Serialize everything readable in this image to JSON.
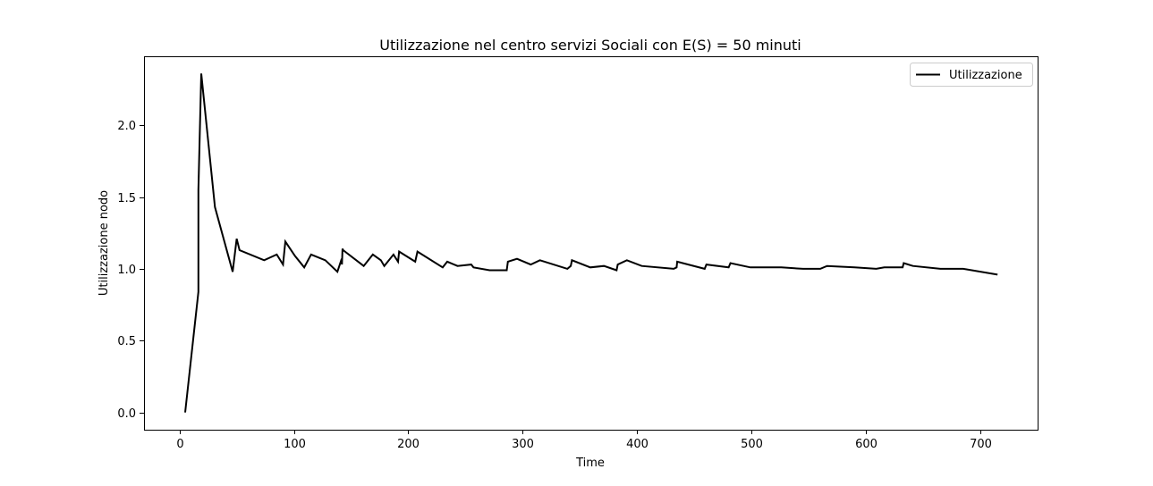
{
  "chart_data": {
    "type": "line",
    "title": "Utilizzazione nel centro servizi Sociali con E(S) = 50 minuti",
    "xlabel": "Time",
    "ylabel": "Utilizzazione nodo",
    "xlim": [
      -31,
      750
    ],
    "ylim": [
      -0.12,
      2.48
    ],
    "xticks": [
      0,
      100,
      200,
      300,
      400,
      500,
      600,
      700
    ],
    "yticks": [
      0.0,
      0.5,
      1.0,
      1.5,
      2.0
    ],
    "xtick_labels": [
      "0",
      "100",
      "200",
      "300",
      "400",
      "500",
      "600",
      "700"
    ],
    "ytick_labels": [
      "0.0",
      "0.5",
      "1.0",
      "1.5",
      "2.0"
    ],
    "grid": false,
    "legend_position": "top-right",
    "series": [
      {
        "name": "Utilizzazione",
        "color": "#000000",
        "x": [
          5,
          16.5,
          16.5,
          19,
          31,
          46.5,
          50,
          52.5,
          74,
          85,
          90.5,
          92.5,
          101,
          109,
          115,
          127.5,
          138,
          141.8,
          142,
          142.5,
          143,
          161,
          169,
          176,
          179,
          187,
          191,
          192,
          206,
          208,
          230,
          234,
          243,
          255,
          257,
          271,
          282,
          286,
          287,
          295,
          307,
          315,
          339,
          342,
          343,
          359,
          371,
          382,
          383,
          391,
          404,
          432,
          434.5,
          435,
          459,
          460.5,
          480,
          481.5,
          499,
          526,
          545,
          560,
          566,
          590,
          609,
          616,
          632,
          633,
          641,
          665,
          685,
          715
        ],
        "y": [
          0.0,
          0.84,
          1.55,
          2.36,
          1.43,
          0.98,
          1.21,
          1.13,
          1.06,
          1.1,
          1.03,
          1.19,
          1.09,
          1.01,
          1.1,
          1.06,
          0.98,
          1.07,
          1.03,
          1.14,
          1.13,
          1.02,
          1.1,
          1.06,
          1.02,
          1.1,
          1.05,
          1.12,
          1.05,
          1.12,
          1.01,
          1.05,
          1.02,
          1.03,
          1.01,
          0.99,
          0.99,
          0.99,
          1.05,
          1.07,
          1.03,
          1.06,
          1.0,
          1.02,
          1.06,
          1.01,
          1.02,
          0.99,
          1.03,
          1.06,
          1.02,
          1.0,
          1.01,
          1.05,
          1.0,
          1.03,
          1.01,
          1.04,
          1.01,
          1.01,
          1.0,
          1.0,
          1.02,
          1.01,
          1.0,
          1.01,
          1.01,
          1.04,
          1.02,
          1.0,
          1.0,
          0.96
        ]
      }
    ]
  }
}
